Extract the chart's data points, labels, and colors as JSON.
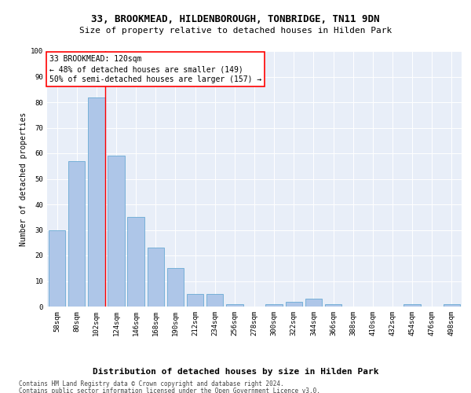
{
  "title": "33, BROOKMEAD, HILDENBOROUGH, TONBRIDGE, TN11 9DN",
  "subtitle": "Size of property relative to detached houses in Hilden Park",
  "xlabel": "Distribution of detached houses by size in Hilden Park",
  "ylabel": "Number of detached properties",
  "bar_color": "#aec6e8",
  "bar_edge_color": "#6aaad4",
  "categories": [
    "58sqm",
    "80sqm",
    "102sqm",
    "124sqm",
    "146sqm",
    "168sqm",
    "190sqm",
    "212sqm",
    "234sqm",
    "256sqm",
    "278sqm",
    "300sqm",
    "322sqm",
    "344sqm",
    "366sqm",
    "388sqm",
    "410sqm",
    "432sqm",
    "454sqm",
    "476sqm",
    "498sqm"
  ],
  "values": [
    30,
    57,
    82,
    59,
    35,
    23,
    15,
    5,
    5,
    1,
    0,
    1,
    2,
    3,
    1,
    0,
    0,
    0,
    1,
    0,
    1
  ],
  "ylim": [
    0,
    100
  ],
  "yticks": [
    0,
    10,
    20,
    30,
    40,
    50,
    60,
    70,
    80,
    90,
    100
  ],
  "red_line_bar_index": 2,
  "annotation_box_text": "33 BROOKMEAD: 120sqm\n← 48% of detached houses are smaller (149)\n50% of semi-detached houses are larger (157) →",
  "background_color": "#e8eef8",
  "title_fontsize": 9,
  "subtitle_fontsize": 8,
  "ylabel_fontsize": 7,
  "xlabel_fontsize": 8,
  "tick_fontsize": 6.5,
  "annot_fontsize": 7,
  "footer_fontsize": 5.5,
  "footer_line1": "Contains HM Land Registry data © Crown copyright and database right 2024.",
  "footer_line2": "Contains public sector information licensed under the Open Government Licence v3.0."
}
